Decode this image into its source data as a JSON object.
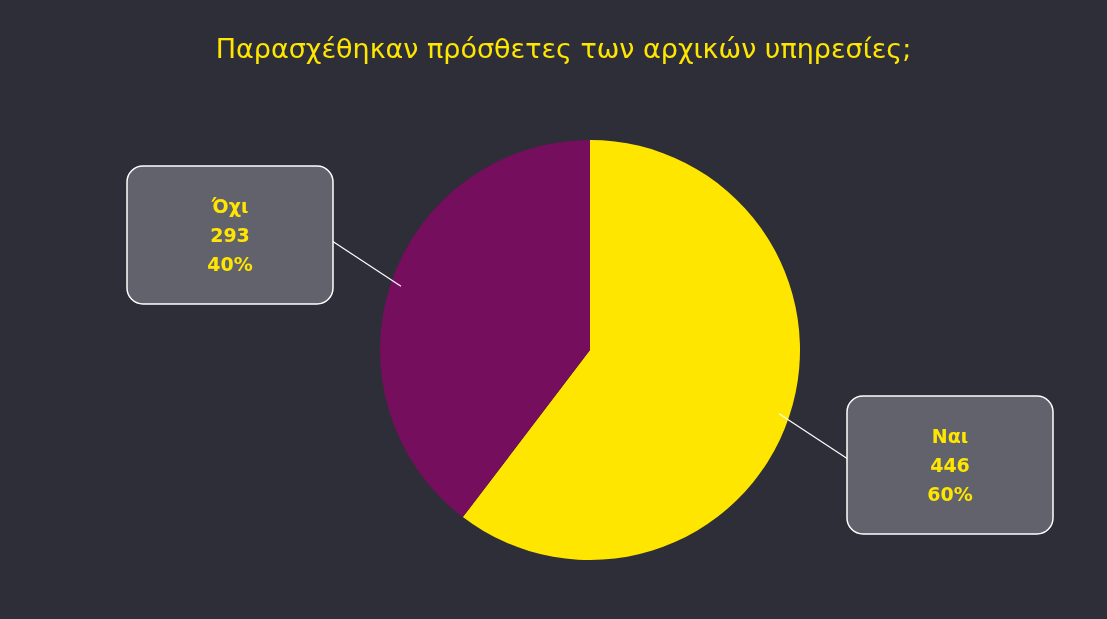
{
  "chart_data": {
    "type": "pie",
    "title": "Παρασχέθηκαν πρόσθετες των αρχικών υπηρεσίες;",
    "categories": [
      "Ναι",
      "Όχι"
    ],
    "values": [
      446,
      293
    ],
    "colors": [
      "#ffe600",
      "#750e5c"
    ],
    "value_labels": [
      "446\n60%",
      "293\n40%"
    ],
    "legend": false
  }
}
